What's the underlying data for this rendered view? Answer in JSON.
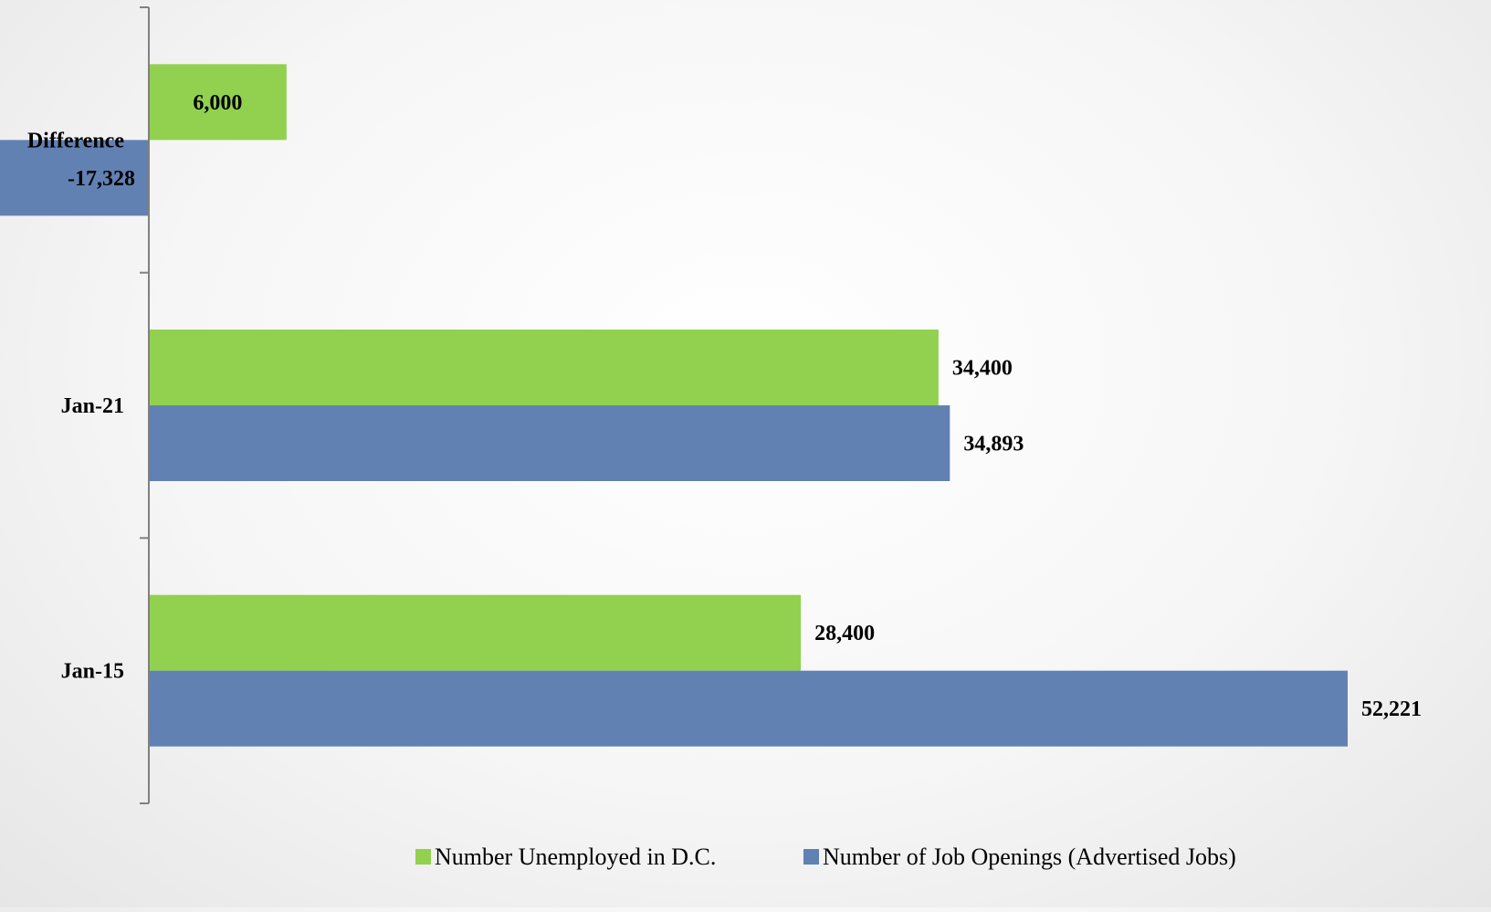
{
  "chart_data": {
    "type": "bar",
    "orientation": "horizontal",
    "categories": [
      "Jan-15",
      "Jan-21",
      "Difference"
    ],
    "series": [
      {
        "name": "Number Unemployed in D.C.",
        "color": "#92d050",
        "values": [
          28400,
          34400,
          6000
        ],
        "labels": [
          "28,400",
          "34,400",
          "6,000"
        ]
      },
      {
        "name": "Number of Job Openings (Advertised Jobs)",
        "color": "#6281b3",
        "values": [
          52221,
          34893,
          -17328
        ],
        "labels": [
          "52,221",
          "34,893",
          "-17,328"
        ]
      }
    ],
    "title": "",
    "xlabel": "",
    "ylabel": "",
    "xlim": [
      -17328,
      52221
    ],
    "grid": false,
    "legend": "bottom"
  }
}
